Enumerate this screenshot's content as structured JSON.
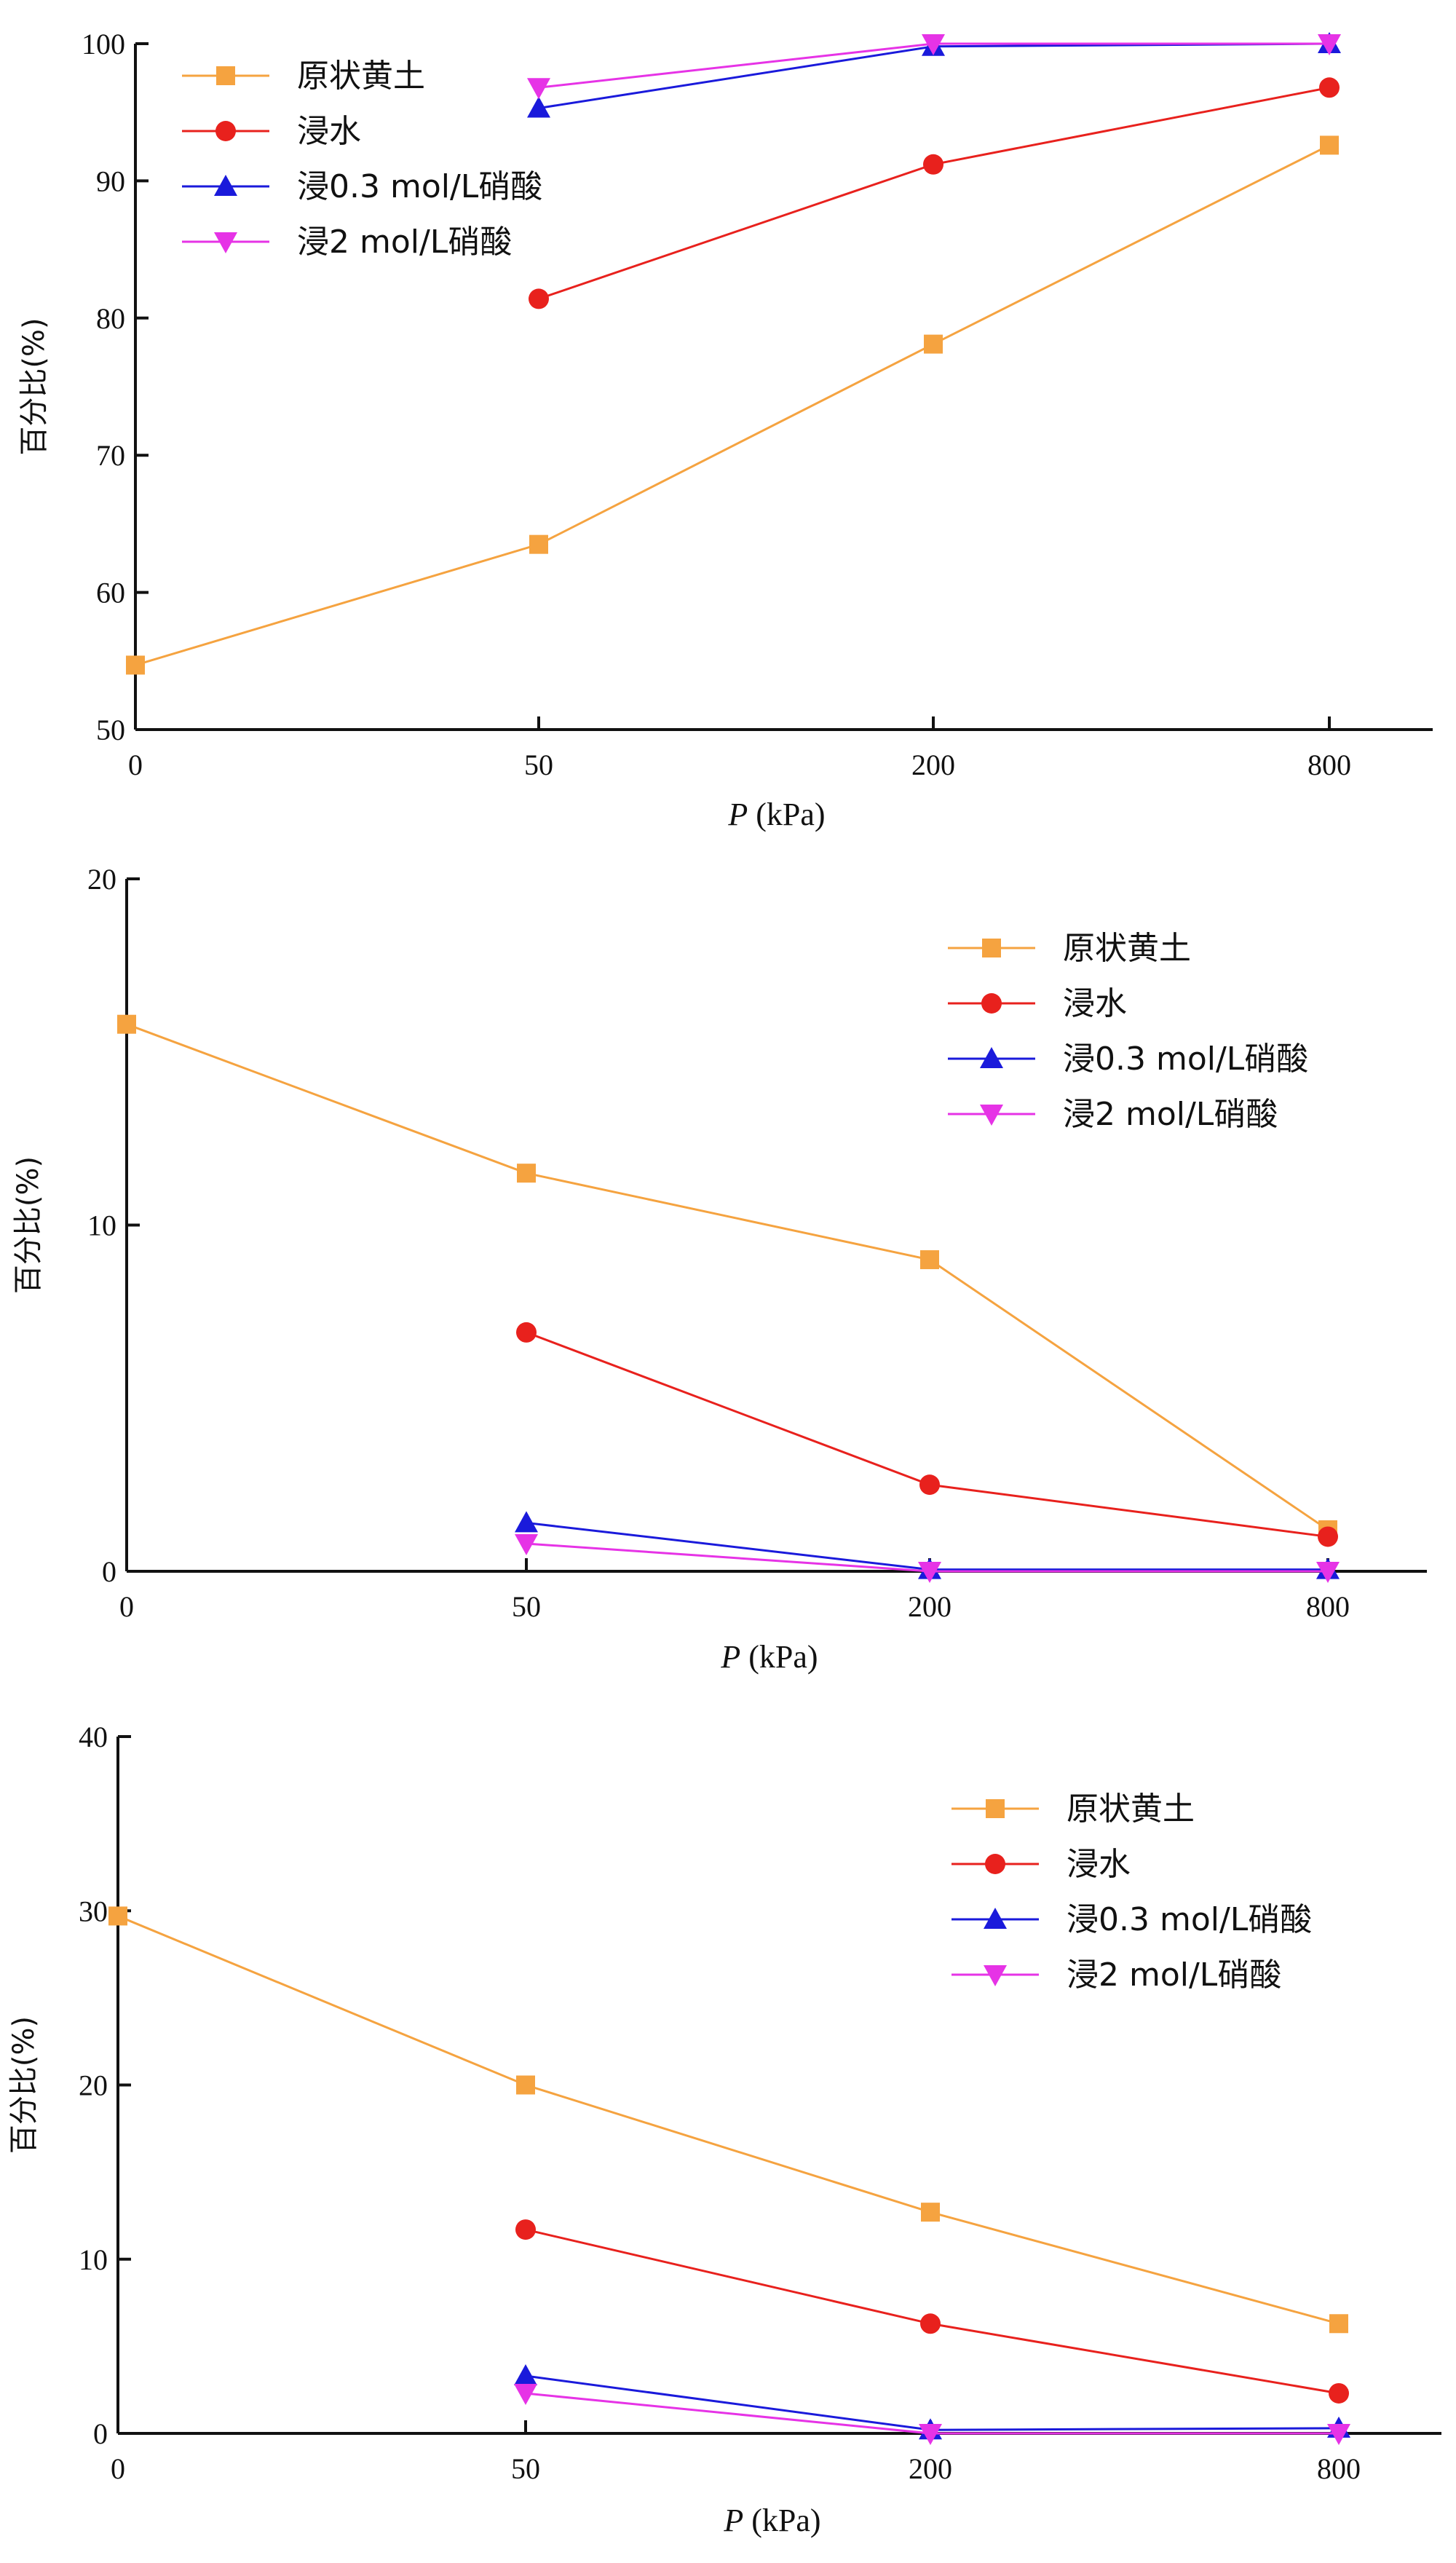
{
  "chart_data": [
    {
      "type": "line",
      "categories": [
        "0",
        "50",
        "200",
        "800"
      ],
      "xlabel": "P (kPa)",
      "xlabel_var": "P",
      "xlabel_unit": " (kPa)",
      "ylabel": "百分比(%)",
      "ylim": [
        50,
        100
      ],
      "yticks": [
        50,
        60,
        70,
        80,
        90,
        100
      ],
      "legend_position": "top-left",
      "series": [
        {
          "name": "原状黄土",
          "color": "#f5a340",
          "marker": "square",
          "values": [
            54.7,
            63.5,
            78.1,
            92.6
          ]
        },
        {
          "name": "浸水",
          "color": "#e8211d",
          "marker": "circle",
          "values": [
            null,
            81.4,
            91.2,
            96.8
          ]
        },
        {
          "name": "浸0.3 mol/L硝酸",
          "color": "#1a1adb",
          "marker": "triangle-up",
          "values": [
            null,
            95.3,
            99.8,
            100
          ]
        },
        {
          "name": "浸2 mol/L硝酸",
          "color": "#e633e6",
          "marker": "triangle-down",
          "values": [
            null,
            96.8,
            100,
            100
          ]
        }
      ]
    },
    {
      "type": "line",
      "categories": [
        "0",
        "50",
        "200",
        "800"
      ],
      "xlabel": "P (kPa)",
      "xlabel_var": "P",
      "xlabel_unit": " (kPa)",
      "ylabel": "百分比(%)",
      "ylim": [
        0,
        20
      ],
      "yticks": [
        0,
        10,
        20
      ],
      "legend_position": "top-right",
      "series": [
        {
          "name": "原状黄土",
          "color": "#f5a340",
          "marker": "square",
          "values": [
            15.8,
            11.5,
            9.0,
            1.2
          ]
        },
        {
          "name": "浸水",
          "color": "#e8211d",
          "marker": "circle",
          "values": [
            null,
            6.9,
            2.5,
            1.0
          ]
        },
        {
          "name": "浸0.3 mol/L硝酸",
          "color": "#1a1adb",
          "marker": "triangle-up",
          "values": [
            null,
            1.4,
            0.05,
            0.05
          ]
        },
        {
          "name": "浸2 mol/L硝酸",
          "color": "#e633e6",
          "marker": "triangle-down",
          "values": [
            null,
            0.8,
            0.0,
            0.0
          ]
        }
      ]
    },
    {
      "type": "line",
      "categories": [
        "0",
        "50",
        "200",
        "800"
      ],
      "xlabel": "P (kPa)",
      "xlabel_var": "P",
      "xlabel_unit": " (kPa)",
      "ylabel": "百分比(%)",
      "ylim": [
        0,
        40
      ],
      "yticks": [
        0,
        10,
        20,
        30,
        40
      ],
      "legend_position": "top-right",
      "series": [
        {
          "name": "原状黄土",
          "color": "#f5a340",
          "marker": "square",
          "values": [
            29.7,
            20.0,
            12.7,
            6.3
          ]
        },
        {
          "name": "浸水",
          "color": "#e8211d",
          "marker": "circle",
          "values": [
            null,
            11.7,
            6.3,
            2.3
          ]
        },
        {
          "name": "浸0.3 mol/L硝酸",
          "color": "#1a1adb",
          "marker": "triangle-up",
          "values": [
            null,
            3.3,
            0.2,
            0.3
          ]
        },
        {
          "name": "浸2 mol/L硝酸",
          "color": "#e633e6",
          "marker": "triangle-down",
          "values": [
            null,
            2.3,
            0.0,
            0.0
          ]
        }
      ]
    }
  ]
}
